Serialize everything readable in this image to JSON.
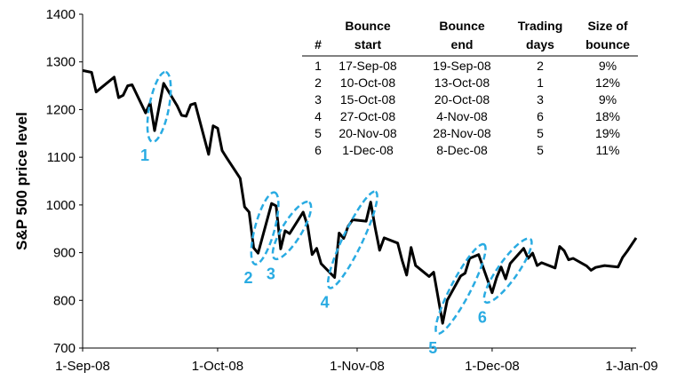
{
  "chart_data": {
    "type": "line",
    "ylabel": "S&P 500 price level",
    "xlabel": "",
    "ylim": [
      700,
      1400
    ],
    "yticks": [
      700,
      800,
      900,
      1000,
      1100,
      1200,
      1300,
      1400
    ],
    "xlim": [
      "2008-09-01",
      "2009-01-02"
    ],
    "xticks": [
      "2008-09-01",
      "2008-10-01",
      "2008-11-01",
      "2008-12-01",
      "2009-01-01"
    ],
    "xtick_labels": [
      "1-Sep-08",
      "1-Oct-08",
      "1-Nov-08",
      "1-Dec-08",
      "1-Jan-09"
    ],
    "grid": false,
    "colors": {
      "line": "#000000",
      "annotation": "#29abe2"
    },
    "series": [
      {
        "x": [
          "2008-09-01",
          "2008-09-03",
          "2008-09-04",
          "2008-09-05",
          "2008-09-08",
          "2008-09-09",
          "2008-09-10",
          "2008-09-11",
          "2008-09-12",
          "2008-09-15",
          "2008-09-16",
          "2008-09-17",
          "2008-09-18",
          "2008-09-19",
          "2008-09-22",
          "2008-09-23",
          "2008-09-24",
          "2008-09-25",
          "2008-09-26",
          "2008-09-29",
          "2008-09-30",
          "2008-10-01",
          "2008-10-02",
          "2008-10-03",
          "2008-10-06",
          "2008-10-07",
          "2008-10-08",
          "2008-10-09",
          "2008-10-10",
          "2008-10-13",
          "2008-10-14",
          "2008-10-15",
          "2008-10-16",
          "2008-10-17",
          "2008-10-20",
          "2008-10-21",
          "2008-10-22",
          "2008-10-23",
          "2008-10-24",
          "2008-10-27",
          "2008-10-28",
          "2008-10-29",
          "2008-10-30",
          "2008-10-31",
          "2008-11-03",
          "2008-11-04",
          "2008-11-05",
          "2008-11-06",
          "2008-11-07",
          "2008-11-10",
          "2008-11-11",
          "2008-11-12",
          "2008-11-13",
          "2008-11-14",
          "2008-11-17",
          "2008-11-18",
          "2008-11-19",
          "2008-11-20",
          "2008-11-21",
          "2008-11-24",
          "2008-11-25",
          "2008-11-26",
          "2008-11-28",
          "2008-12-01",
          "2008-12-02",
          "2008-12-03",
          "2008-12-04",
          "2008-12-05",
          "2008-12-08",
          "2008-12-09",
          "2008-12-10",
          "2008-12-11",
          "2008-12-12",
          "2008-12-15",
          "2008-12-16",
          "2008-12-17",
          "2008-12-18",
          "2008-12-19",
          "2008-12-22",
          "2008-12-23",
          "2008-12-24",
          "2008-12-26",
          "2008-12-29",
          "2008-12-30",
          "2008-12-31",
          "2009-01-02"
        ],
        "values": [
          1282,
          1278,
          1237,
          1245,
          1268,
          1225,
          1230,
          1250,
          1252,
          1193,
          1214,
          1156,
          1206,
          1255,
          1208,
          1188,
          1186,
          1210,
          1213,
          1106,
          1166,
          1161,
          1114,
          1099,
          1056,
          996,
          985,
          910,
          899,
          1003,
          998,
          908,
          946,
          940,
          985,
          956,
          896,
          909,
          877,
          848,
          941,
          930,
          955,
          969,
          966,
          1006,
          953,
          905,
          931,
          920,
          884,
          853,
          911,
          873,
          850,
          859,
          806,
          752,
          800,
          851,
          857,
          888,
          896,
          816,
          848,
          870,
          845,
          877,
          909,
          888,
          899,
          873,
          879,
          868,
          913,
          904,
          885,
          888,
          872,
          863,
          869,
          873,
          870,
          890,
          903,
          931
        ]
      }
    ],
    "annotations": [
      {
        "label": "1",
        "start": "2008-09-17",
        "end": "2008-09-19"
      },
      {
        "label": "2",
        "start": "2008-10-10",
        "end": "2008-10-13"
      },
      {
        "label": "3",
        "start": "2008-10-15",
        "end": "2008-10-20"
      },
      {
        "label": "4",
        "start": "2008-10-27",
        "end": "2008-11-04"
      },
      {
        "label": "5",
        "start": "2008-11-20",
        "end": "2008-11-28"
      },
      {
        "label": "6",
        "start": "2008-12-01",
        "end": "2008-12-08"
      }
    ],
    "table": {
      "headers": [
        [
          "",
          "#"
        ],
        [
          "Bounce",
          "start"
        ],
        [
          "Bounce",
          "end"
        ],
        [
          "Trading",
          "days"
        ],
        [
          "Size of",
          "bounce"
        ]
      ],
      "rows": [
        [
          "1",
          "17-Sep-08",
          "19-Sep-08",
          "2",
          "9%"
        ],
        [
          "2",
          "10-Oct-08",
          "13-Oct-08",
          "1",
          "12%"
        ],
        [
          "3",
          "15-Oct-08",
          "20-Oct-08",
          "3",
          "9%"
        ],
        [
          "4",
          "27-Oct-08",
          "4-Nov-08",
          "6",
          "18%"
        ],
        [
          "5",
          "20-Nov-08",
          "28-Nov-08",
          "5",
          "19%"
        ],
        [
          "6",
          "1-Dec-08",
          "8-Dec-08",
          "5",
          "11%"
        ]
      ]
    }
  }
}
